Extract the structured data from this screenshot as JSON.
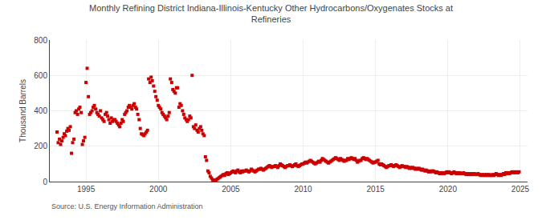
{
  "chart_data": {
    "type": "scatter",
    "title": "Monthly Refining District Indiana-Illinois-Kentucky Other Hydrocarbons/Oxygenates Stocks at\nRefineries",
    "ylabel": "Thousand Barrels",
    "source": "Source: U.S. Energy Information Administration",
    "color": "#cc0000",
    "marker": "square",
    "grid": true,
    "xlim": [
      1992.5,
      2025.5
    ],
    "ylim": [
      0,
      800
    ],
    "xticks": [
      1995,
      2000,
      2005,
      2010,
      2015,
      2020,
      2025
    ],
    "yticks": [
      0,
      200,
      400,
      600,
      800
    ],
    "x": [
      1993.0,
      1993.08,
      1993.17,
      1993.25,
      1993.33,
      1993.42,
      1993.5,
      1993.58,
      1993.67,
      1993.75,
      1993.83,
      1993.92,
      1994.0,
      1994.08,
      1994.17,
      1994.25,
      1994.33,
      1994.42,
      1994.5,
      1994.58,
      1994.67,
      1994.75,
      1994.83,
      1994.92,
      1995.0,
      1995.08,
      1995.17,
      1995.25,
      1995.33,
      1995.42,
      1995.5,
      1995.58,
      1995.67,
      1995.75,
      1995.83,
      1995.92,
      1996.0,
      1996.08,
      1996.17,
      1996.25,
      1996.33,
      1996.42,
      1996.5,
      1996.58,
      1996.67,
      1996.75,
      1996.83,
      1996.92,
      1997.0,
      1997.08,
      1997.17,
      1997.25,
      1997.33,
      1997.42,
      1997.5,
      1997.58,
      1997.67,
      1997.75,
      1997.83,
      1997.92,
      1998.0,
      1998.08,
      1998.17,
      1998.25,
      1998.33,
      1998.42,
      1998.5,
      1998.58,
      1998.67,
      1998.75,
      1998.83,
      1998.92,
      1999.0,
      1999.08,
      1999.17,
      1999.25,
      1999.33,
      1999.42,
      1999.5,
      1999.58,
      1999.67,
      1999.75,
      1999.83,
      1999.92,
      2000.0,
      2000.08,
      2000.17,
      2000.25,
      2000.33,
      2000.42,
      2000.5,
      2000.58,
      2000.67,
      2000.75,
      2000.83,
      2000.92,
      2001.0,
      2001.08,
      2001.17,
      2001.25,
      2001.33,
      2001.42,
      2001.5,
      2001.58,
      2001.67,
      2001.75,
      2001.83,
      2001.92,
      2002.0,
      2002.08,
      2002.17,
      2002.25,
      2002.33,
      2002.42,
      2002.5,
      2002.58,
      2002.67,
      2002.75,
      2002.83,
      2002.92,
      2003.0,
      2003.08,
      2003.17,
      2003.25,
      2003.33,
      2003.42,
      2003.5,
      2003.58,
      2003.67,
      2003.75,
      2003.83,
      2003.92,
      2004.0,
      2004.08,
      2004.17,
      2004.25,
      2004.33,
      2004.42,
      2004.5,
      2004.58,
      2004.67,
      2004.75,
      2004.83,
      2004.92,
      2005.0,
      2005.08,
      2005.17,
      2005.25,
      2005.33,
      2005.42,
      2005.5,
      2005.58,
      2005.67,
      2005.75,
      2005.83,
      2005.92,
      2006.0,
      2006.08,
      2006.17,
      2006.25,
      2006.33,
      2006.42,
      2006.5,
      2006.58,
      2006.67,
      2006.75,
      2006.83,
      2006.92,
      2007.0,
      2007.08,
      2007.17,
      2007.25,
      2007.33,
      2007.42,
      2007.5,
      2007.58,
      2007.67,
      2007.75,
      2007.83,
      2007.92,
      2008.0,
      2008.08,
      2008.17,
      2008.25,
      2008.33,
      2008.42,
      2008.5,
      2008.58,
      2008.67,
      2008.75,
      2008.83,
      2008.92,
      2009.0,
      2009.08,
      2009.17,
      2009.25,
      2009.33,
      2009.42,
      2009.5,
      2009.58,
      2009.67,
      2009.75,
      2009.83,
      2009.92,
      2010.0,
      2010.08,
      2010.17,
      2010.25,
      2010.33,
      2010.42,
      2010.5,
      2010.58,
      2010.67,
      2010.75,
      2010.83,
      2010.92,
      2011.0,
      2011.08,
      2011.17,
      2011.25,
      2011.33,
      2011.42,
      2011.5,
      2011.58,
      2011.67,
      2011.75,
      2011.83,
      2011.92,
      2012.0,
      2012.08,
      2012.17,
      2012.25,
      2012.33,
      2012.42,
      2012.5,
      2012.58,
      2012.67,
      2012.75,
      2012.83,
      2012.92,
      2013.0,
      2013.08,
      2013.17,
      2013.25,
      2013.33,
      2013.42,
      2013.5,
      2013.58,
      2013.67,
      2013.75,
      2013.83,
      2013.92,
      2014.0,
      2014.08,
      2014.17,
      2014.25,
      2014.33,
      2014.42,
      2014.5,
      2014.58,
      2014.67,
      2014.75,
      2014.83,
      2014.92,
      2015.0,
      2015.08,
      2015.17,
      2015.25,
      2015.33,
      2015.42,
      2015.5,
      2015.58,
      2015.67,
      2015.75,
      2015.83,
      2015.92,
      2016.0,
      2016.08,
      2016.17,
      2016.25,
      2016.33,
      2016.42,
      2016.5,
      2016.58,
      2016.67,
      2016.75,
      2016.83,
      2016.92,
      2017.0,
      2017.08,
      2017.17,
      2017.25,
      2017.33,
      2017.42,
      2017.5,
      2017.58,
      2017.67,
      2017.75,
      2017.83,
      2017.92,
      2018.0,
      2018.08,
      2018.17,
      2018.25,
      2018.33,
      2018.42,
      2018.5,
      2018.58,
      2018.67,
      2018.75,
      2018.83,
      2018.92,
      2019.0,
      2019.08,
      2019.17,
      2019.25,
      2019.33,
      2019.42,
      2019.5,
      2019.58,
      2019.67,
      2019.75,
      2019.83,
      2019.92,
      2020.0,
      2020.08,
      2020.17,
      2020.25,
      2020.33,
      2020.42,
      2020.5,
      2020.58,
      2020.67,
      2020.75,
      2020.83,
      2020.92,
      2021.0,
      2021.08,
      2021.17,
      2021.25,
      2021.33,
      2021.42,
      2021.5,
      2021.58,
      2021.67,
      2021.75,
      2021.83,
      2021.92,
      2022.0,
      2022.08,
      2022.17,
      2022.25,
      2022.33,
      2022.42,
      2022.5,
      2022.58,
      2022.67,
      2022.75,
      2022.83,
      2022.92,
      2023.0,
      2023.08,
      2023.17,
      2023.25,
      2023.33,
      2023.42,
      2023.5,
      2023.58,
      2023.67,
      2023.75,
      2023.83,
      2023.92,
      2024.0,
      2024.08,
      2024.17,
      2024.25,
      2024.33,
      2024.42,
      2024.5,
      2024.58,
      2024.67,
      2024.75,
      2024.83,
      2024.92
    ],
    "values": [
      280,
      220,
      240,
      210,
      230,
      250,
      270,
      260,
      285,
      300,
      290,
      310,
      160,
      220,
      240,
      390,
      400,
      380,
      410,
      420,
      390,
      210,
      230,
      250,
      560,
      640,
      480,
      380,
      390,
      400,
      420,
      430,
      410,
      390,
      380,
      370,
      400,
      360,
      350,
      340,
      380,
      390,
      370,
      350,
      330,
      360,
      340,
      350,
      350,
      340,
      330,
      320,
      310,
      330,
      350,
      340,
      380,
      390,
      400,
      420,
      430,
      420,
      410,
      430,
      440,
      420,
      410,
      380,
      350,
      300,
      270,
      265,
      260,
      270,
      280,
      290,
      580,
      560,
      590,
      570,
      540,
      510,
      480,
      460,
      430,
      420,
      410,
      390,
      380,
      370,
      360,
      350,
      370,
      390,
      580,
      560,
      520,
      510,
      500,
      530,
      530,
      420,
      440,
      430,
      400,
      380,
      360,
      350,
      340,
      350,
      370,
      360,
      600,
      310,
      300,
      320,
      290,
      280,
      300,
      310,
      290,
      270,
      260,
      140,
      120,
      60,
      50,
      30,
      20,
      10,
      8,
      5,
      10,
      15,
      20,
      25,
      30,
      35,
      40,
      35,
      45,
      50,
      40,
      45,
      50,
      55,
      60,
      55,
      50,
      60,
      65,
      55,
      50,
      60,
      55,
      60,
      60,
      65,
      60,
      55,
      60,
      70,
      65,
      60,
      55,
      60,
      65,
      70,
      70,
      75,
      70,
      65,
      70,
      75,
      80,
      85,
      90,
      85,
      80,
      85,
      85,
      90,
      85,
      80,
      90,
      100,
      95,
      90,
      85,
      80,
      85,
      90,
      90,
      95,
      90,
      85,
      90,
      95,
      100,
      90,
      85,
      90,
      95,
      100,
      100,
      105,
      110,
      105,
      110,
      115,
      120,
      115,
      110,
      105,
      100,
      105,
      110,
      115,
      110,
      120,
      130,
      125,
      120,
      115,
      110,
      105,
      110,
      115,
      120,
      125,
      130,
      135,
      130,
      125,
      120,
      130,
      125,
      120,
      115,
      120,
      120,
      130,
      125,
      130,
      135,
      130,
      125,
      130,
      120,
      110,
      115,
      120,
      120,
      130,
      135,
      130,
      125,
      130,
      125,
      120,
      115,
      110,
      105,
      110,
      110,
      115,
      120,
      100,
      95,
      100,
      95,
      90,
      85,
      80,
      85,
      90,
      90,
      95,
      90,
      85,
      90,
      95,
      90,
      85,
      80,
      85,
      90,
      85,
      85,
      80,
      85,
      80,
      75,
      80,
      75,
      80,
      75,
      70,
      75,
      70,
      75,
      70,
      65,
      70,
      65,
      60,
      65,
      60,
      55,
      60,
      55,
      60,
      60,
      55,
      50,
      55,
      50,
      45,
      50,
      45,
      50,
      45,
      50,
      55,
      50,
      55,
      50,
      45,
      50,
      55,
      50,
      45,
      50,
      45,
      50,
      45,
      45,
      50,
      45,
      40,
      45,
      40,
      45,
      40,
      45,
      40,
      45,
      40,
      40,
      45,
      40,
      35,
      40,
      35,
      40,
      35,
      40,
      35,
      40,
      35,
      35,
      40,
      35,
      40,
      45,
      40,
      35,
      40,
      35,
      40,
      45,
      40,
      50,
      45,
      50,
      45,
      50,
      55,
      50,
      55,
      50,
      55,
      50,
      55
    ]
  }
}
